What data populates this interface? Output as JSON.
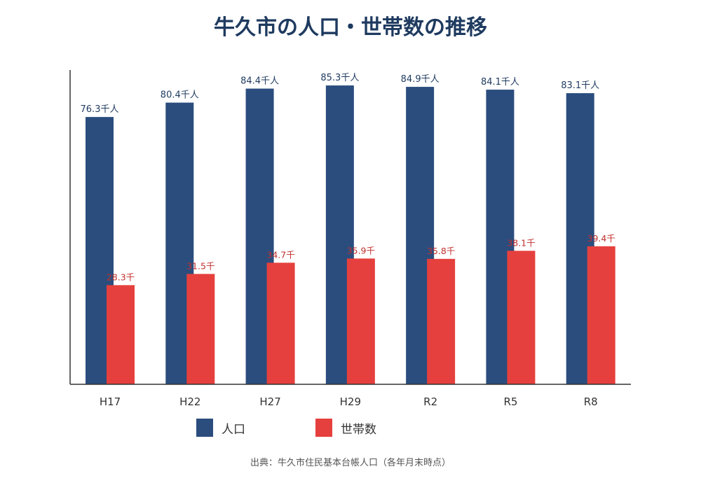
{
  "title": "牛久市の人口・世帯数の推移",
  "source": "出典：牛久市住民基本台帳人口（各年月末時点）",
  "colors": {
    "population": "#2b4d7e",
    "households": "#e5403d",
    "axis": "#333333"
  },
  "chart_data": {
    "type": "bar",
    "title": "牛久市の人口・世帯数の推移",
    "categories": [
      "H17",
      "H22",
      "H27",
      "H29",
      "R2",
      "R5",
      "R8"
    ],
    "series": [
      {
        "name": "人口",
        "values": [
          76.3,
          80.4,
          84.4,
          85.3,
          84.9,
          84.1,
          83.1
        ],
        "labels": [
          "76.3千人",
          "80.4千人",
          "84.4千人",
          "85.3千人",
          "84.9千人",
          "84.1千人",
          "83.1千人"
        ]
      },
      {
        "name": "世帯数",
        "values": [
          28.3,
          31.5,
          34.7,
          35.9,
          35.8,
          38.1,
          39.4
        ],
        "labels": [
          "28.3千",
          "31.5千",
          "34.7千",
          "35.9千",
          "35.8千",
          "38.1千",
          "39.4千"
        ]
      }
    ],
    "legend_position": "bottom",
    "grid": false
  }
}
